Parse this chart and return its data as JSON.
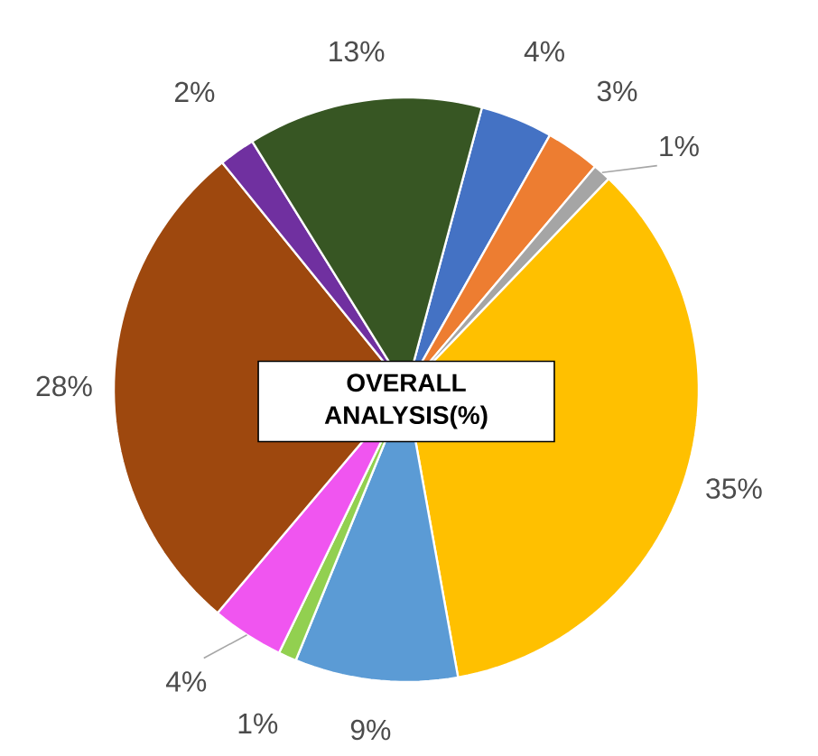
{
  "chart_data": {
    "type": "pie",
    "title": "OVERALL ANALYSIS(%)",
    "categories": [
      null,
      null,
      null,
      null,
      null,
      null,
      null,
      null,
      null,
      null
    ],
    "values": [
      4,
      3,
      1,
      35,
      9,
      1,
      4,
      28,
      2,
      13
    ],
    "value_labels": [
      "4%",
      "3%",
      "1%",
      "35%",
      "9%",
      "1%",
      "4%",
      "28%",
      "2%",
      "13%"
    ],
    "colors": [
      "#4472c4",
      "#ed7d31",
      "#a5a5a5",
      "#ffc000",
      "#5b9bd5",
      "#92d050",
      "#f055f0",
      "#9e480e",
      "#7030a0",
      "#375623"
    ]
  }
}
